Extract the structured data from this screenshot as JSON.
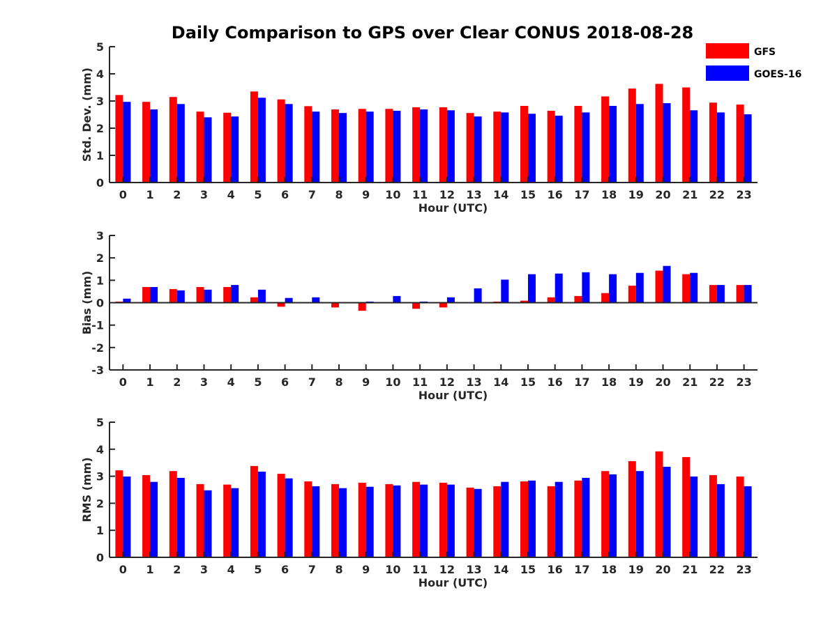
{
  "title": "Daily Comparison to GPS over Clear CONUS 2018-08-28",
  "legend": {
    "position": "top-right",
    "entries": [
      {
        "name": "GFS",
        "color": "#ff0000"
      },
      {
        "name": "GOES-16",
        "color": "#0000ff"
      }
    ]
  },
  "chart_data": [
    {
      "type": "bar",
      "xlabel": "Hour (UTC)",
      "ylabel": "Std. Dev. (mm)",
      "ylim": [
        0,
        5
      ],
      "yticks": [
        0,
        1,
        2,
        3,
        4,
        5
      ],
      "categories": [
        "0",
        "1",
        "2",
        "3",
        "4",
        "5",
        "6",
        "7",
        "8",
        "9",
        "10",
        "11",
        "12",
        "13",
        "14",
        "15",
        "16",
        "17",
        "18",
        "19",
        "20",
        "21",
        "22",
        "23"
      ],
      "series": [
        {
          "name": "GFS",
          "color": "#ff0000",
          "values": [
            3.22,
            2.97,
            3.15,
            2.61,
            2.57,
            3.35,
            3.06,
            2.81,
            2.69,
            2.71,
            2.71,
            2.77,
            2.77,
            2.56,
            2.61,
            2.82,
            2.64,
            2.82,
            3.17,
            3.46,
            3.63,
            3.5,
            2.94,
            2.87
          ]
        },
        {
          "name": "GOES-16",
          "color": "#0000ff",
          "values": [
            2.97,
            2.69,
            2.89,
            2.4,
            2.43,
            3.12,
            2.89,
            2.61,
            2.56,
            2.61,
            2.64,
            2.69,
            2.66,
            2.43,
            2.58,
            2.53,
            2.46,
            2.58,
            2.82,
            2.89,
            2.92,
            2.66,
            2.58,
            2.51
          ]
        }
      ]
    },
    {
      "type": "bar",
      "xlabel": "Hour (UTC)",
      "ylabel": "Bias (mm)",
      "ylim": [
        -3,
        3
      ],
      "yticks": [
        -3,
        -2,
        -1,
        0,
        1,
        2,
        3
      ],
      "categories": [
        "0",
        "1",
        "2",
        "3",
        "4",
        "5",
        "6",
        "7",
        "8",
        "9",
        "10",
        "11",
        "12",
        "13",
        "14",
        "15",
        "16",
        "17",
        "18",
        "19",
        "20",
        "21",
        "22",
        "23"
      ],
      "series": [
        {
          "name": "GFS",
          "color": "#ff0000",
          "values": [
            0.05,
            0.7,
            0.61,
            0.7,
            0.7,
            0.24,
            -0.18,
            -0.03,
            -0.21,
            -0.36,
            -0.03,
            -0.27,
            -0.21,
            -0.03,
            0.05,
            0.09,
            0.24,
            0.3,
            0.43,
            0.76,
            1.43,
            1.27,
            0.79,
            0.79
          ]
        },
        {
          "name": "GOES-16",
          "color": "#0000ff",
          "values": [
            0.18,
            0.7,
            0.55,
            0.58,
            0.79,
            0.58,
            0.21,
            0.24,
            0.02,
            0.05,
            0.3,
            0.05,
            0.24,
            0.64,
            1.03,
            1.27,
            1.3,
            1.36,
            1.27,
            1.33,
            1.64,
            1.33,
            0.79,
            0.79
          ]
        }
      ]
    },
    {
      "type": "bar",
      "xlabel": "Hour (UTC)",
      "ylabel": "RMS (mm)",
      "ylim": [
        0,
        5
      ],
      "yticks": [
        0,
        1,
        2,
        3,
        4,
        5
      ],
      "categories": [
        "0",
        "1",
        "2",
        "3",
        "4",
        "5",
        "6",
        "7",
        "8",
        "9",
        "10",
        "11",
        "12",
        "13",
        "14",
        "15",
        "16",
        "17",
        "18",
        "19",
        "20",
        "21",
        "22",
        "23"
      ],
      "series": [
        {
          "name": "GFS",
          "color": "#ff0000",
          "values": [
            3.22,
            3.04,
            3.19,
            2.71,
            2.69,
            3.38,
            3.09,
            2.81,
            2.71,
            2.76,
            2.71,
            2.79,
            2.76,
            2.58,
            2.63,
            2.81,
            2.63,
            2.84,
            3.19,
            3.56,
            3.92,
            3.71,
            3.04,
            2.99
          ]
        },
        {
          "name": "GOES-16",
          "color": "#0000ff",
          "values": [
            2.99,
            2.79,
            2.94,
            2.48,
            2.56,
            3.17,
            2.92,
            2.63,
            2.56,
            2.61,
            2.66,
            2.69,
            2.69,
            2.53,
            2.79,
            2.84,
            2.79,
            2.94,
            3.07,
            3.19,
            3.35,
            2.99,
            2.71,
            2.63
          ]
        }
      ]
    }
  ]
}
